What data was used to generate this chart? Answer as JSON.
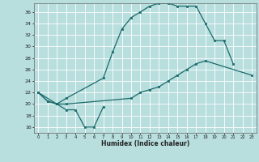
{
  "xlabel": "Humidex (Indice chaleur)",
  "bg_color": "#b8dede",
  "line_color": "#1a6b6b",
  "grid_color": "#ffffff",
  "xlim": [
    -0.5,
    23.5
  ],
  "ylim": [
    15,
    37.5
  ],
  "xticks": [
    0,
    1,
    2,
    3,
    4,
    5,
    6,
    7,
    8,
    9,
    10,
    11,
    12,
    13,
    14,
    15,
    16,
    17,
    18,
    19,
    20,
    21,
    22,
    23
  ],
  "yticks": [
    16,
    18,
    20,
    22,
    24,
    26,
    28,
    30,
    32,
    34,
    36
  ],
  "line1_x": [
    0,
    1,
    2,
    3,
    4,
    5,
    6,
    7
  ],
  "line1_y": [
    22,
    20.5,
    20,
    19,
    19,
    16,
    16,
    19.5
  ],
  "line2_x": [
    0,
    1,
    2,
    3,
    7,
    8,
    9,
    10,
    11,
    12,
    13,
    14,
    15,
    16,
    17,
    18,
    19,
    20,
    21
  ],
  "line2_y": [
    22,
    20.5,
    20,
    21,
    24.5,
    29,
    33,
    35,
    36,
    37,
    37.5,
    37.5,
    37,
    37,
    37,
    34,
    31,
    31,
    27
  ],
  "line3_x": [
    0,
    2,
    3,
    10,
    11,
    12,
    13,
    14,
    15,
    16,
    17,
    18,
    23
  ],
  "line3_y": [
    22,
    20,
    20,
    21,
    22,
    22.5,
    23,
    24,
    25,
    26,
    27,
    27.5,
    25
  ]
}
